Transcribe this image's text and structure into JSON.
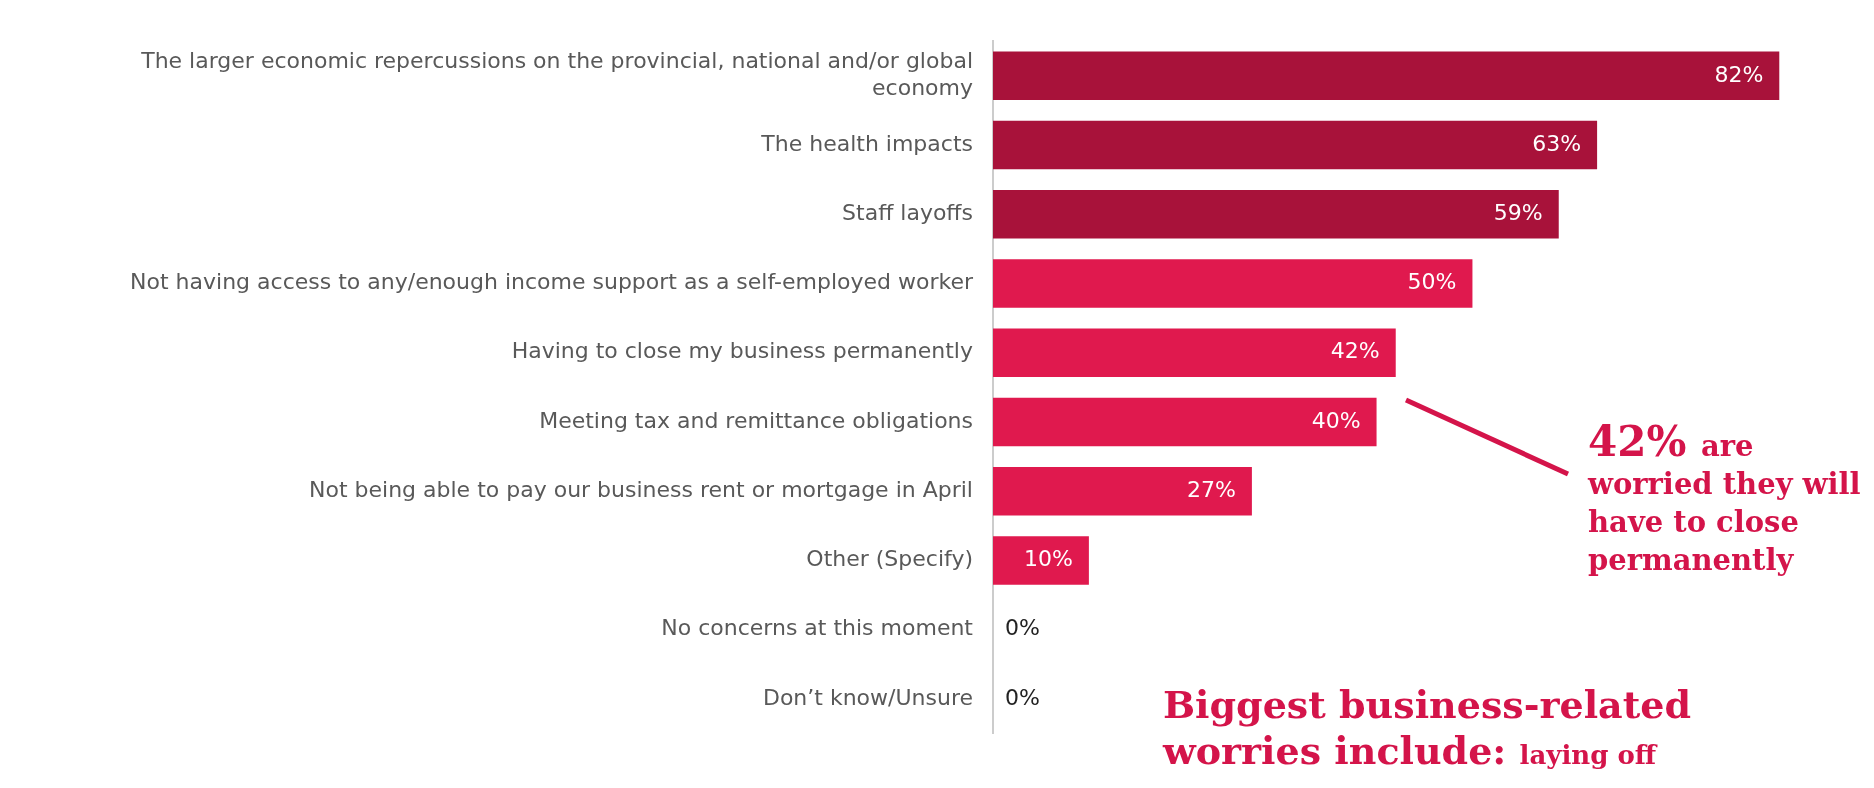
{
  "chart_data": {
    "type": "bar",
    "orientation": "horizontal",
    "categories": [
      "The larger economic repercussions on the provincial, national and/or global economy",
      "The health impacts",
      "Staff layoffs",
      "Not having access to any/enough income support as a self-employed worker",
      "Having to close my business permanently",
      "Meeting tax and remittance obligations",
      "Not being able to pay our business rent or mortgage in April",
      "Other (Specify)",
      "No concerns at this moment",
      "Don’t know/Unsure"
    ],
    "values": [
      82,
      63,
      59,
      50,
      42,
      40,
      27,
      10,
      0,
      0
    ],
    "colors": [
      "#a8123a",
      "#a8123a",
      "#a8123a",
      "#e0194e",
      "#e0194e",
      "#e0194e",
      "#e0194e",
      "#e0194e",
      "#e0194e",
      "#e0194e"
    ],
    "value_labels": [
      "82%",
      "63%",
      "59%",
      "50%",
      "42%",
      "40%",
      "27%",
      "10%",
      "0%",
      "0%"
    ],
    "grid": false,
    "legend": false,
    "annotations": [
      "42% are worried they will have to close permanently",
      "Biggest business-related worries include: laying off"
    ]
  }
}
